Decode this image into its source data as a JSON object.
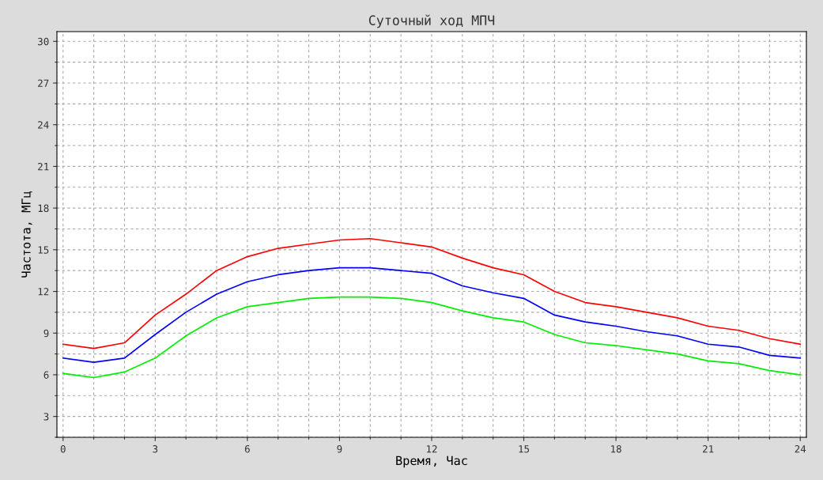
{
  "chart_data": {
    "type": "line",
    "title": "Суточный ход МПЧ",
    "xlabel": "Время, Час",
    "ylabel": "Частота, МГц",
    "x": [
      0,
      1,
      2,
      3,
      4,
      5,
      6,
      7,
      8,
      9,
      10,
      11,
      12,
      13,
      14,
      15,
      16,
      17,
      18,
      19,
      20,
      21,
      22,
      23,
      24
    ],
    "series": [
      {
        "color": "#ff0000",
        "values": [
          8.2,
          7.9,
          8.3,
          10.3,
          11.8,
          13.5,
          14.5,
          15.1,
          15.4,
          15.7,
          15.8,
          15.5,
          15.2,
          14.4,
          13.7,
          13.2,
          12.0,
          11.2,
          10.9,
          10.5,
          10.1,
          9.5,
          9.2,
          8.6,
          8.2
        ]
      },
      {
        "color": "#0000ff",
        "values": [
          7.2,
          6.9,
          7.2,
          8.9,
          10.5,
          11.8,
          12.7,
          13.2,
          13.5,
          13.7,
          13.7,
          13.5,
          13.3,
          12.4,
          11.9,
          11.5,
          10.3,
          9.8,
          9.5,
          9.1,
          8.8,
          8.2,
          8.0,
          7.4,
          7.2
        ]
      },
      {
        "color": "#00ee00",
        "values": [
          6.1,
          5.8,
          6.2,
          7.2,
          8.8,
          10.1,
          10.9,
          11.2,
          11.5,
          11.6,
          11.6,
          11.5,
          11.2,
          10.6,
          10.1,
          9.8,
          8.9,
          8.3,
          8.1,
          7.8,
          7.5,
          7.0,
          6.8,
          6.3,
          6.0
        ]
      }
    ],
    "xlim": [
      -0.2,
      24.2
    ],
    "ylim": [
      1.5,
      30.7
    ],
    "xticks": [
      0,
      3,
      6,
      9,
      12,
      15,
      18,
      21,
      24
    ],
    "yticks": [
      3,
      6,
      9,
      12,
      15,
      18,
      21,
      24,
      27,
      30
    ],
    "grid": true,
    "line_style": "solid",
    "marker": "none"
  }
}
